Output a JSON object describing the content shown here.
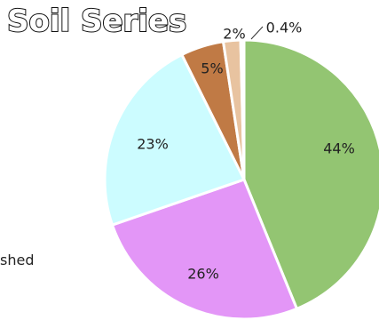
{
  "chart_data": {
    "type": "pie",
    "title": "Soil Series",
    "slices": [
      {
        "label": "44%",
        "value": 44,
        "color": "#93c572"
      },
      {
        "label": "26%",
        "value": 26,
        "color": "#e396f7"
      },
      {
        "label": "23%",
        "value": 23,
        "color": "#ccfcff"
      },
      {
        "label": "5%",
        "value": 5,
        "color": "#c07a45"
      },
      {
        "label": "2%",
        "value": 2,
        "color": "#e8c3a0"
      },
      {
        "label": "0.4%",
        "value": 0.4,
        "color": "#ffffff"
      }
    ],
    "legend_fragment": "shed"
  }
}
